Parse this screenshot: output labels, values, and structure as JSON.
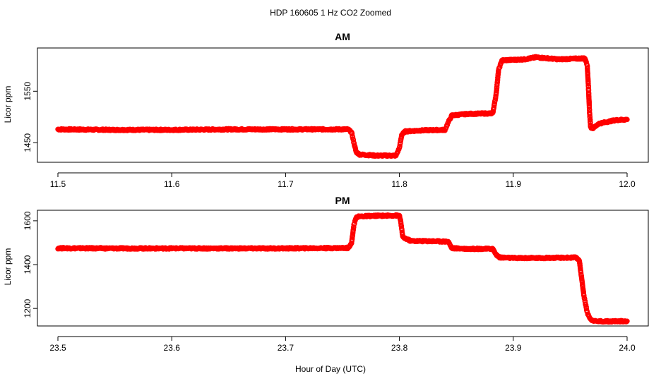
{
  "figure": {
    "title": "HDP  160605  1 Hz CO2 Zoomed",
    "xlabel": "Hour of Day (UTC)"
  },
  "colors": {
    "points": "#ff0000"
  },
  "chart_data": [
    {
      "type": "scatter",
      "title": "AM",
      "ylabel": "Licor ppm",
      "xlim": [
        11.5,
        12.0
      ],
      "ylim": [
        1412,
        1634
      ],
      "xticks": [
        11.5,
        11.6,
        11.7,
        11.8,
        11.9,
        12.0
      ],
      "xtick_labels": [
        "11.5",
        "11.6",
        "11.7",
        "11.8",
        "11.9",
        "12.0"
      ],
      "yticks": [
        1450,
        1550
      ],
      "ytick_labels": [
        "1450",
        "1550"
      ],
      "series": [
        {
          "marker": "open-circle",
          "points": [
            [
              11.5,
              1476
            ],
            [
              11.55,
              1475
            ],
            [
              11.6,
              1475
            ],
            [
              11.65,
              1476
            ],
            [
              11.7,
              1476
            ],
            [
              11.755,
              1476
            ],
            [
              11.758,
              1470
            ],
            [
              11.76,
              1450
            ],
            [
              11.762,
              1432
            ],
            [
              11.765,
              1427
            ],
            [
              11.78,
              1425
            ],
            [
              11.797,
              1425
            ],
            [
              11.8,
              1440
            ],
            [
              11.802,
              1465
            ],
            [
              11.805,
              1472
            ],
            [
              11.82,
              1474
            ],
            [
              11.84,
              1475
            ],
            [
              11.843,
              1490
            ],
            [
              11.846,
              1503
            ],
            [
              11.86,
              1506
            ],
            [
              11.882,
              1507
            ],
            [
              11.885,
              1545
            ],
            [
              11.887,
              1590
            ],
            [
              11.89,
              1610
            ],
            [
              11.91,
              1612
            ],
            [
              11.92,
              1616
            ],
            [
              11.94,
              1612
            ],
            [
              11.963,
              1614
            ],
            [
              11.965,
              1600
            ],
            [
              11.966,
              1560
            ],
            [
              11.967,
              1510
            ],
            [
              11.968,
              1480
            ],
            [
              11.97,
              1478
            ],
            [
              11.975,
              1487
            ],
            [
              11.99,
              1494
            ],
            [
              12.0,
              1495
            ]
          ]
        }
      ]
    },
    {
      "type": "scatter",
      "title": "PM",
      "ylabel": "Licor ppm",
      "xlim": [
        23.5,
        24.0
      ],
      "ylim": [
        1120,
        1648
      ],
      "xticks": [
        23.5,
        23.6,
        23.7,
        23.8,
        23.9,
        24.0
      ],
      "xtick_labels": [
        "23.5",
        "23.6",
        "23.7",
        "23.8",
        "23.9",
        "24.0"
      ],
      "yticks": [
        1200,
        1400,
        1600
      ],
      "ytick_labels": [
        "1200",
        "1400",
        "1600"
      ],
      "series": [
        {
          "marker": "open-circle",
          "points": [
            [
              23.5,
              1475
            ],
            [
              23.55,
              1474
            ],
            [
              23.6,
              1474
            ],
            [
              23.65,
              1474
            ],
            [
              23.7,
              1474
            ],
            [
              23.755,
              1476
            ],
            [
              23.758,
              1500
            ],
            [
              23.76,
              1580
            ],
            [
              23.762,
              1616
            ],
            [
              23.765,
              1620
            ],
            [
              23.78,
              1623
            ],
            [
              23.8,
              1624
            ],
            [
              23.801,
              1600
            ],
            [
              23.803,
              1525
            ],
            [
              23.81,
              1508
            ],
            [
              23.83,
              1507
            ],
            [
              23.843,
              1505
            ],
            [
              23.846,
              1475
            ],
            [
              23.86,
              1472
            ],
            [
              23.882,
              1472
            ],
            [
              23.885,
              1445
            ],
            [
              23.888,
              1433
            ],
            [
              23.9,
              1430
            ],
            [
              23.92,
              1430
            ],
            [
              23.955,
              1432
            ],
            [
              23.958,
              1420
            ],
            [
              23.96,
              1340
            ],
            [
              23.962,
              1260
            ],
            [
              23.965,
              1180
            ],
            [
              23.968,
              1150
            ],
            [
              23.972,
              1142
            ],
            [
              23.98,
              1141
            ],
            [
              24.0,
              1142
            ]
          ]
        }
      ]
    }
  ]
}
